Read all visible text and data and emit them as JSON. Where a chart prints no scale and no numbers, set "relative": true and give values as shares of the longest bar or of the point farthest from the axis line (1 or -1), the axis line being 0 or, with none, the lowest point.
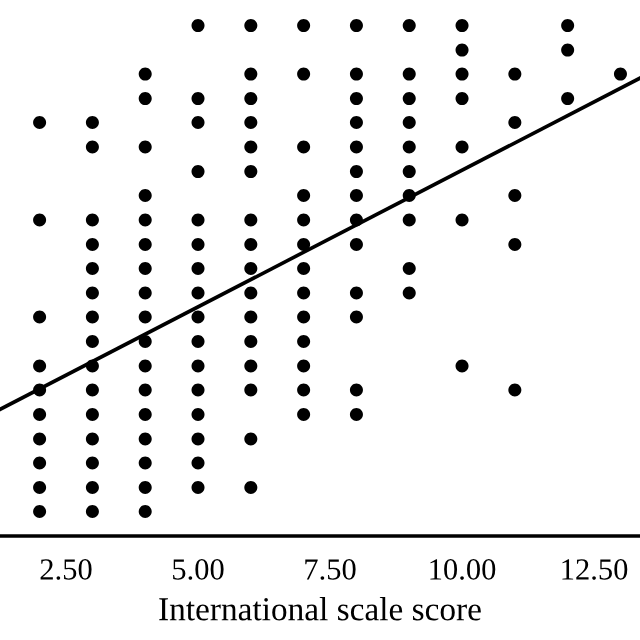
{
  "chart_data": {
    "type": "scatter",
    "xlabel": "International scale score",
    "relative": true,
    "xlim": [
      1.25,
      13.37
    ],
    "xticks": [
      {
        "value": 2.5,
        "label": "2.50"
      },
      {
        "value": 5,
        "label": "5.00"
      },
      {
        "value": 7.5,
        "label": "7.50"
      },
      {
        "value": 10,
        "label": "10.00"
      },
      {
        "value": 12.5,
        "label": "12.50"
      }
    ],
    "tick_labels": "x",
    "grid": false,
    "legend": false,
    "series": [
      {
        "color": "#000000",
        "marker": "circle",
        "x": [
          2,
          2,
          2,
          2,
          2,
          2,
          2,
          2,
          2,
          2,
          3,
          3,
          3,
          3,
          3,
          3,
          3,
          3,
          3,
          3,
          3,
          3,
          3,
          3,
          3,
          4,
          4,
          4,
          4,
          4,
          4,
          4,
          4,
          4,
          4,
          4,
          4,
          4,
          4,
          4,
          4,
          4,
          5,
          5,
          5,
          5,
          5,
          5,
          5,
          5,
          5,
          5,
          5,
          5,
          5,
          5,
          5,
          5,
          6,
          6,
          6,
          6,
          6,
          6,
          6,
          6,
          6,
          6,
          6,
          6,
          6,
          6,
          6,
          6,
          7,
          7,
          7,
          7,
          7,
          7,
          7,
          7,
          7,
          7,
          7,
          7,
          7,
          8,
          8,
          8,
          8,
          8,
          8,
          8,
          8,
          8,
          8,
          8,
          8,
          8,
          9,
          9,
          9,
          9,
          9,
          9,
          9,
          9,
          9,
          9,
          10,
          10,
          10,
          10,
          10,
          10,
          10,
          11,
          11,
          11,
          11,
          11,
          12,
          12,
          12,
          13
        ],
        "values": [
          0.048,
          0.095,
          0.143,
          0.19,
          0.238,
          0.286,
          0.333,
          0.429,
          0.619,
          0.81,
          0.048,
          0.095,
          0.143,
          0.19,
          0.238,
          0.286,
          0.333,
          0.381,
          0.429,
          0.476,
          0.524,
          0.571,
          0.619,
          0.762,
          0.81,
          0.048,
          0.095,
          0.143,
          0.19,
          0.238,
          0.286,
          0.333,
          0.381,
          0.429,
          0.476,
          0.524,
          0.571,
          0.619,
          0.667,
          0.762,
          0.857,
          0.905,
          0.095,
          0.143,
          0.19,
          0.238,
          0.286,
          0.333,
          0.381,
          0.429,
          0.476,
          0.524,
          0.571,
          0.619,
          0.714,
          0.81,
          0.857,
          1.0,
          0.095,
          0.19,
          0.286,
          0.333,
          0.381,
          0.429,
          0.476,
          0.524,
          0.571,
          0.619,
          0.714,
          0.762,
          0.81,
          0.857,
          0.905,
          1.0,
          0.238,
          0.286,
          0.333,
          0.381,
          0.429,
          0.476,
          0.524,
          0.571,
          0.619,
          0.667,
          0.762,
          0.905,
          1.0,
          0.238,
          0.286,
          0.429,
          0.476,
          0.571,
          0.619,
          0.667,
          0.714,
          0.762,
          0.81,
          0.857,
          0.905,
          1.0,
          0.476,
          0.524,
          0.619,
          0.667,
          0.714,
          0.762,
          0.81,
          0.857,
          0.905,
          1.0,
          0.333,
          0.619,
          0.762,
          0.857,
          0.905,
          0.952,
          1.0,
          0.286,
          0.571,
          0.667,
          0.81,
          0.905,
          0.857,
          0.952,
          1.0,
          0.905
        ]
      },
      {
        "type": "line",
        "color": "#000000",
        "x": [
          1.25,
          13.37
        ],
        "values": [
          0.248,
          0.897
        ]
      }
    ]
  }
}
